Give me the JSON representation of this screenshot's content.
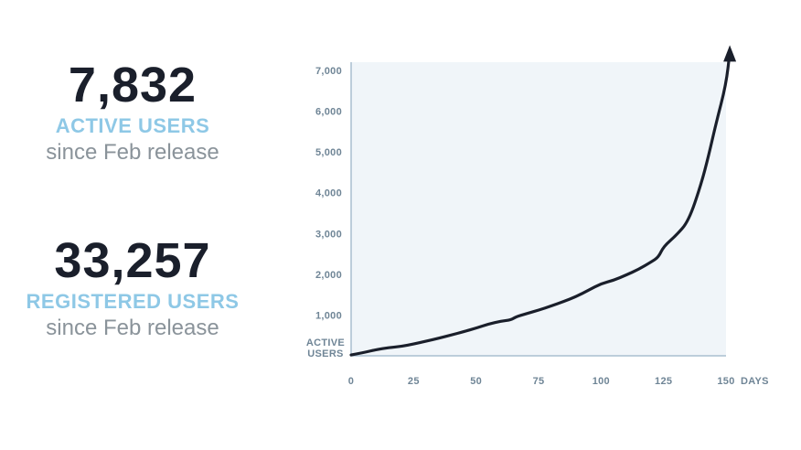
{
  "stats": {
    "active": {
      "number": "7,832",
      "label": "ACTIVE USERS",
      "sub": "since Feb release"
    },
    "registered": {
      "number": "33,257",
      "label": "REGISTERED USERS",
      "sub": "since Feb release"
    }
  },
  "colors": {
    "plot_background": "#f0f5f9",
    "axis": "#a9bfd0",
    "line": "#1a1f2b",
    "label_accent": "#8ec8e6"
  },
  "chart_data": {
    "type": "line",
    "title": "",
    "xlabel": "DAYS",
    "ylabel": "ACTIVE USERS",
    "xlim": [
      0,
      150
    ],
    "ylim": [
      0,
      7000
    ],
    "x_ticks": [
      0,
      25,
      50,
      75,
      100,
      125,
      150
    ],
    "y_ticks": [
      1000,
      2000,
      3000,
      4000,
      5000,
      6000,
      7000
    ],
    "x_tick_labels": [
      "0",
      "25",
      "50",
      "75",
      "100",
      "125",
      "150"
    ],
    "y_tick_labels": [
      "1,000",
      "2,000",
      "3,000",
      "4,000",
      "5,000",
      "6,000",
      "7,000"
    ],
    "grid": false,
    "series": [
      {
        "x": [
          0,
          5,
          10,
          15,
          20,
          25,
          30,
          35,
          40,
          45,
          50,
          55,
          60,
          64,
          66,
          70,
          75,
          80,
          85,
          90,
          95,
          100,
          105,
          110,
          115,
          120,
          123,
          125,
          130,
          135,
          140,
          143,
          146,
          150
        ],
        "y": [
          20,
          80,
          150,
          200,
          230,
          290,
          360,
          430,
          510,
          590,
          680,
          780,
          850,
          880,
          960,
          1030,
          1120,
          1220,
          1330,
          1450,
          1610,
          1770,
          1850,
          1980,
          2120,
          2300,
          2420,
          2680,
          2950,
          3300,
          4200,
          4900,
          5700,
          6650
        ]
      }
    ],
    "arrow": {
      "x": [
        150,
        151.5
      ],
      "y": [
        6650,
        7620
      ]
    }
  }
}
